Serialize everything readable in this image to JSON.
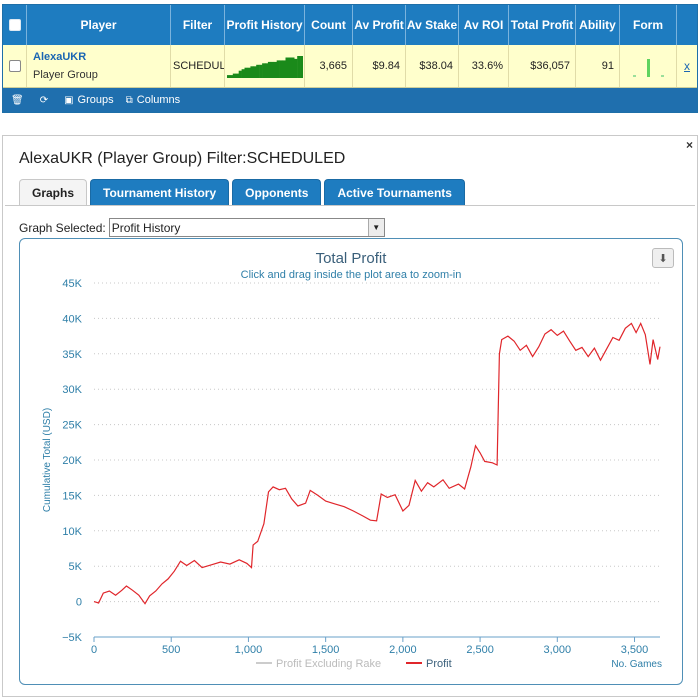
{
  "grid": {
    "columns": [
      "Player",
      "Filter",
      "Profit History",
      "Count",
      "Av Profit",
      "Av Stake",
      "Av ROI",
      "Total Profit",
      "Ability",
      "Form"
    ],
    "row": {
      "player_name": "AlexaUKR",
      "player_type": "Player Group",
      "filter": "SCHEDULED",
      "count": "3,665",
      "av_profit": "$9.84",
      "av_stake": "$38.04",
      "av_roi": "33.6%",
      "total_profit": "$36,057",
      "ability": "91",
      "remove": "x"
    },
    "footer": {
      "groups": "Groups",
      "columns": "Columns"
    }
  },
  "panel": {
    "title": "AlexaUKR (Player Group) Filter:SCHEDULED",
    "close": "×",
    "tabs": [
      "Graphs",
      "Tournament History",
      "Opponents",
      "Active Tournaments"
    ],
    "active_tab": 0,
    "graph_selected_label": "Graph Selected:",
    "graph_selected_value": "Profit History"
  },
  "colors": {
    "header_blue": "#1e7cc0",
    "row_highlight": "#ffffcc",
    "profit_line": "#e0262b",
    "sparkline_green": "#1a8a1a",
    "axis_text": "#2f7fa8"
  },
  "chart_data": {
    "type": "line",
    "title": "Total Profit",
    "subtitle": "Click and drag inside the plot area to zoom-in",
    "xlabel": "No. Games",
    "ylabel": "Cumulative Total (USD)",
    "xlim": [
      0,
      3665
    ],
    "ylim": [
      -5000,
      45000
    ],
    "x_ticks": [
      0,
      500,
      1000,
      1500,
      2000,
      2500,
      3000,
      3500
    ],
    "x_tick_labels": [
      "0",
      "500",
      "1,000",
      "1,500",
      "2,000",
      "2,500",
      "3,000",
      "3,500"
    ],
    "y_ticks": [
      -5000,
      0,
      5000,
      10000,
      15000,
      20000,
      25000,
      30000,
      35000,
      40000,
      45000
    ],
    "y_tick_labels": [
      "−5K",
      "0",
      "5K",
      "10K",
      "15K",
      "20K",
      "25K",
      "30K",
      "35K",
      "40K",
      "45K"
    ],
    "grid": "horizontal-dotted",
    "legend": "bottom-center",
    "series": [
      {
        "name": "Profit Excluding Rake",
        "color": "#cccccc",
        "values": []
      },
      {
        "name": "Profit",
        "color": "#e0262b",
        "points": [
          [
            0,
            0
          ],
          [
            30,
            -200
          ],
          [
            60,
            1200
          ],
          [
            100,
            1500
          ],
          [
            140,
            900
          ],
          [
            180,
            1600
          ],
          [
            210,
            2200
          ],
          [
            250,
            1600
          ],
          [
            290,
            900
          ],
          [
            330,
            -300
          ],
          [
            360,
            800
          ],
          [
            400,
            1500
          ],
          [
            440,
            2500
          ],
          [
            480,
            3200
          ],
          [
            520,
            4300
          ],
          [
            560,
            5700
          ],
          [
            600,
            5100
          ],
          [
            650,
            5800
          ],
          [
            700,
            4800
          ],
          [
            760,
            5200
          ],
          [
            820,
            5600
          ],
          [
            880,
            5300
          ],
          [
            940,
            5900
          ],
          [
            990,
            5400
          ],
          [
            1020,
            4800
          ],
          [
            1030,
            8000
          ],
          [
            1060,
            8500
          ],
          [
            1100,
            11000
          ],
          [
            1130,
            15500
          ],
          [
            1160,
            16200
          ],
          [
            1200,
            15800
          ],
          [
            1240,
            16000
          ],
          [
            1280,
            14500
          ],
          [
            1320,
            13500
          ],
          [
            1370,
            13900
          ],
          [
            1400,
            15700
          ],
          [
            1450,
            15000
          ],
          [
            1500,
            14200
          ],
          [
            1560,
            13800
          ],
          [
            1620,
            13400
          ],
          [
            1680,
            12800
          ],
          [
            1740,
            12100
          ],
          [
            1790,
            11500
          ],
          [
            1830,
            11400
          ],
          [
            1860,
            15200
          ],
          [
            1900,
            14700
          ],
          [
            1950,
            15100
          ],
          [
            2000,
            12800
          ],
          [
            2040,
            13600
          ],
          [
            2080,
            17100
          ],
          [
            2120,
            15600
          ],
          [
            2160,
            16800
          ],
          [
            2200,
            16200
          ],
          [
            2260,
            17200
          ],
          [
            2300,
            16000
          ],
          [
            2360,
            16600
          ],
          [
            2400,
            15900
          ],
          [
            2440,
            19000
          ],
          [
            2470,
            22000
          ],
          [
            2500,
            21000
          ],
          [
            2530,
            19800
          ],
          [
            2580,
            19600
          ],
          [
            2610,
            19300
          ],
          [
            2625,
            35000
          ],
          [
            2640,
            37000
          ],
          [
            2680,
            37500
          ],
          [
            2720,
            36800
          ],
          [
            2760,
            35500
          ],
          [
            2800,
            36200
          ],
          [
            2840,
            34600
          ],
          [
            2880,
            36000
          ],
          [
            2920,
            37800
          ],
          [
            2960,
            38400
          ],
          [
            3000,
            37600
          ],
          [
            3040,
            38200
          ],
          [
            3080,
            36800
          ],
          [
            3120,
            35500
          ],
          [
            3160,
            35900
          ],
          [
            3200,
            34600
          ],
          [
            3240,
            35800
          ],
          [
            3280,
            34100
          ],
          [
            3320,
            35700
          ],
          [
            3360,
            37300
          ],
          [
            3400,
            36900
          ],
          [
            3440,
            38600
          ],
          [
            3480,
            39300
          ],
          [
            3510,
            38000
          ],
          [
            3540,
            39300
          ],
          [
            3570,
            37700
          ],
          [
            3600,
            33500
          ],
          [
            3620,
            37000
          ],
          [
            3650,
            34200
          ],
          [
            3665,
            36000
          ]
        ]
      }
    ],
    "sparkline": [
      2,
      2,
      3,
      3,
      5,
      6,
      7,
      7,
      8,
      8,
      9,
      9,
      10,
      10,
      11,
      11,
      11,
      12,
      12,
      12,
      14,
      14,
      14,
      13,
      15,
      15
    ]
  },
  "form_bars": [
    2,
    18,
    2
  ]
}
